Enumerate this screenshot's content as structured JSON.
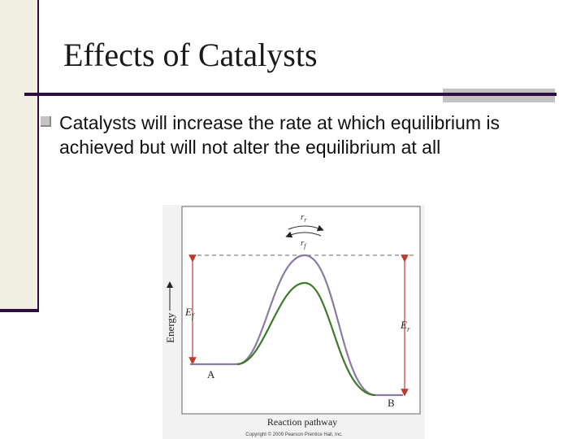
{
  "slide": {
    "title": "Effects of Catalysts",
    "bullets": [
      "Catalysts will increase the rate at which equilibrium is achieved but will not alter the equilibrium at all"
    ]
  },
  "figure": {
    "y_axis_label": "Energy",
    "x_axis_label": "Reaction pathway",
    "point_a": "A",
    "point_b": "B",
    "label_rr": "r",
    "label_rr_sub": "r",
    "label_rf": "r",
    "label_rf_sub": "f",
    "label_ef": "E",
    "label_ef_sub": "f",
    "label_er": "E",
    "label_er_sub": "r",
    "copyright": "Copyright © 2009 Pearson Prentice Hall, Inc.",
    "colors": {
      "uncatalyzed_curve": "#8a7aa0",
      "catalyzed_curve": "#3f7a2a",
      "arrows": "#c0392b"
    }
  }
}
